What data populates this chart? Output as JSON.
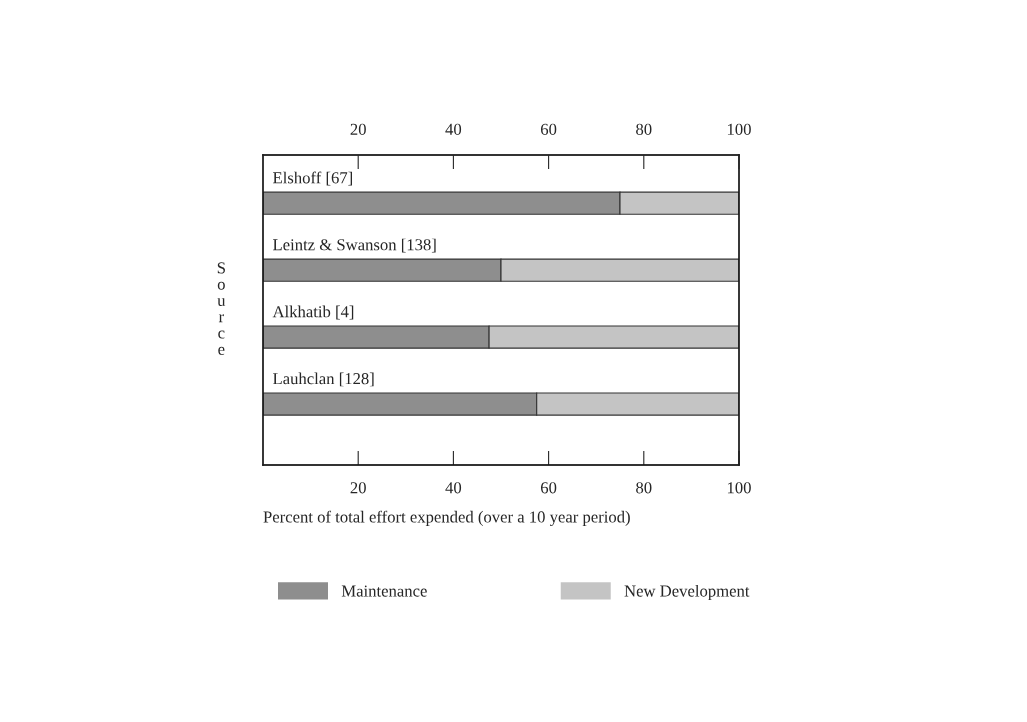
{
  "chart_data": {
    "type": "bar",
    "orientation": "horizontal",
    "stacked": true,
    "categories": [
      "Elshoff [67]",
      "Leintz & Swanson [138]",
      "Alkhatib [4]",
      "Lauhclan [128]"
    ],
    "series": [
      {
        "name": "Maintenance",
        "color": "#8e8e8e",
        "values": [
          75,
          50,
          47.5,
          57.5
        ]
      },
      {
        "name": "New Development",
        "color": "#c4c4c4",
        "values": [
          25,
          50,
          52.5,
          42.5
        ]
      }
    ],
    "xlabel": "Percent of total effort expended (over a 10 year period)",
    "ylabel": "Source",
    "xlim": [
      0,
      100
    ],
    "xticks": [
      20,
      40,
      60,
      80,
      100
    ],
    "x2lim": [
      0,
      100
    ],
    "x2ticks": [
      20,
      40,
      60,
      80,
      100
    ],
    "legend": "bottom",
    "grid": false
  }
}
